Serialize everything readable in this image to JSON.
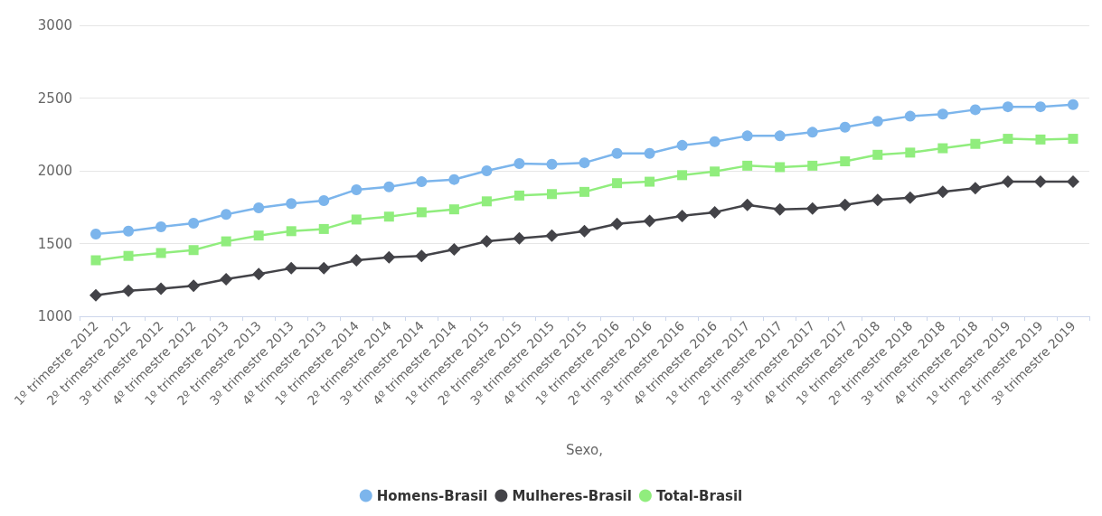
{
  "chart_data": {
    "type": "line",
    "xlabel": "Sexo,",
    "categories": [
      "1º trimestre 2012",
      "2º trimestre 2012",
      "3º trimestre 2012",
      "4º trimestre 2012",
      "1º trimestre 2013",
      "2º trimestre 2013",
      "3º trimestre 2013",
      "4º trimestre 2013",
      "1º trimestre 2014",
      "2º trimestre 2014",
      "3º trimestre 2014",
      "4º trimestre 2014",
      "1º trimestre 2015",
      "2º trimestre 2015",
      "3º trimestre 2015",
      "4º trimestre 2015",
      "1º trimestre 2016",
      "2º trimestre 2016",
      "3º trimestre 2016",
      "4º trimestre 2016",
      "1º trimestre 2017",
      "2º trimestre 2017",
      "3º trimestre 2017",
      "4º trimestre 2017",
      "1º trimestre 2018",
      "2º trimestre 2018",
      "3º trimestre 2018",
      "4º trimestre 2018",
      "1º trimestre 2019",
      "2º trimestre 2019",
      "3º trimestre 2019"
    ],
    "series": [
      {
        "name": "Homens-Brasil",
        "color": "#7cb5ec",
        "marker": "circle",
        "values": [
          1565,
          1585,
          1615,
          1640,
          1700,
          1745,
          1775,
          1795,
          1870,
          1890,
          1925,
          1940,
          2000,
          2050,
          2045,
          2055,
          2120,
          2120,
          2175,
          2200,
          2240,
          2240,
          2265,
          2300,
          2340,
          2375,
          2390,
          2420,
          2440,
          2440,
          2455
        ]
      },
      {
        "name": "Mulheres-Brasil",
        "color": "#434348",
        "marker": "diamond",
        "values": [
          1145,
          1175,
          1190,
          1210,
          1255,
          1290,
          1330,
          1330,
          1385,
          1405,
          1415,
          1460,
          1515,
          1535,
          1555,
          1585,
          1635,
          1655,
          1690,
          1715,
          1765,
          1735,
          1740,
          1765,
          1800,
          1815,
          1855,
          1880,
          1925,
          1925,
          1925
        ]
      },
      {
        "name": "Total-Brasil",
        "color": "#90ed7d",
        "marker": "square",
        "values": [
          1385,
          1415,
          1435,
          1455,
          1515,
          1555,
          1585,
          1600,
          1665,
          1685,
          1715,
          1735,
          1790,
          1830,
          1840,
          1855,
          1915,
          1925,
          1970,
          1995,
          2035,
          2025,
          2035,
          2065,
          2110,
          2125,
          2155,
          2185,
          2220,
          2215,
          2220
        ]
      }
    ],
    "ylim": [
      1000,
      3000
    ],
    "yticks": [
      1000,
      1500,
      2000,
      2500,
      3000
    ],
    "grid": "y",
    "legend": "bottom",
    "line_style": "solid"
  }
}
